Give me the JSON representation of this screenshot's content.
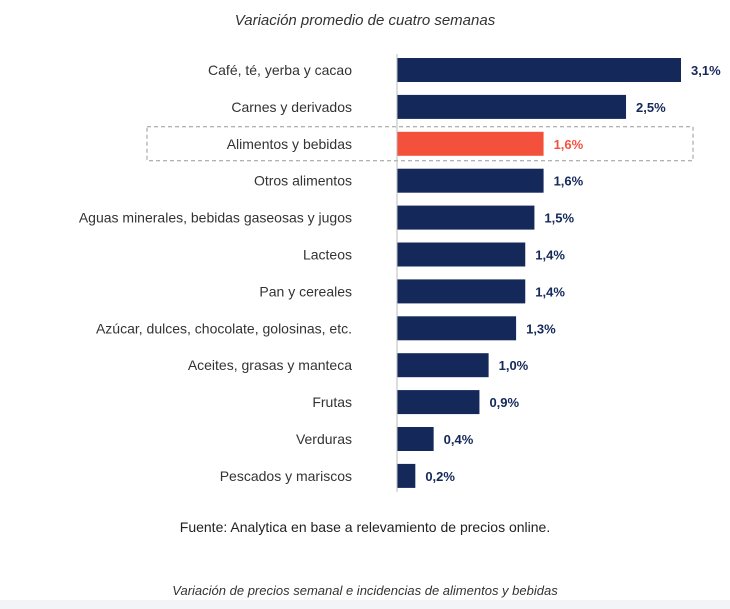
{
  "chart_data": {
    "type": "bar",
    "orientation": "horizontal",
    "title": "Variación promedio de cuatro semanas",
    "categories": [
      "Café, té, yerba y cacao",
      "Carnes y derivados",
      "Alimentos y bebidas",
      "Otros alimentos",
      "Aguas minerales, bebidas gaseosas y jugos",
      "Lacteos",
      "Pan y cereales",
      "Azúcar, dulces, chocolate, golosinas, etc.",
      "Aceites, grasas y manteca",
      "Frutas",
      "Verduras",
      "Pescados y mariscos"
    ],
    "values": [
      3.1,
      2.5,
      1.6,
      1.6,
      1.5,
      1.4,
      1.4,
      1.3,
      1.0,
      0.9,
      0.4,
      0.2
    ],
    "value_labels": [
      "3,1%",
      "2,5%",
      "1,6%",
      "1,6%",
      "1,5%",
      "1,4%",
      "1,4%",
      "1,3%",
      "1,0%",
      "0,9%",
      "0,4%",
      "0,2%"
    ],
    "highlight_index": 2,
    "xlim": [
      0,
      3.1
    ],
    "grid": false,
    "legend": "none",
    "colors": {
      "bar": "#14285a",
      "highlight": "#f4513d",
      "value_label": "#14285a",
      "highlight_label": "#f4513d",
      "axis": "#bbbbbb",
      "highlight_box": "#999999"
    }
  },
  "source": "Fuente: Analytica en base a relevamiento de precios online.",
  "caption": "Variación de precios semanal e incidencias de alimentos y bebidas"
}
